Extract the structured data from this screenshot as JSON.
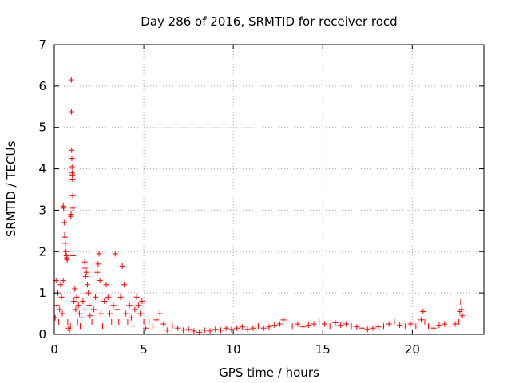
{
  "chart_data": {
    "type": "scatter",
    "title": "Day 286 of 2016, SRMTID for receiver rocd",
    "xlabel": "GPS time / hours",
    "ylabel": "SRMTID / TECUs",
    "xlim": [
      0,
      24
    ],
    "ylim": [
      0,
      7
    ],
    "xticks": [
      0,
      5,
      10,
      15,
      20
    ],
    "xtick_labels": [
      "0",
      "5",
      "10",
      "15",
      "20"
    ],
    "yticks": [
      0,
      1,
      2,
      3,
      4,
      5,
      6,
      7
    ],
    "ytick_labels": [
      "0",
      "1",
      "2",
      "3",
      "4",
      "5",
      "6",
      "7"
    ],
    "grid": true,
    "marker": "plus",
    "color": "#ff0000",
    "series": [
      {
        "name": "SRMTID",
        "points": [
          [
            0.05,
            0.4
          ],
          [
            0.1,
            1.3
          ],
          [
            0.15,
            0.7
          ],
          [
            0.2,
            1.0
          ],
          [
            0.25,
            0.3
          ],
          [
            0.3,
            0.6
          ],
          [
            0.35,
            1.2
          ],
          [
            0.4,
            0.9
          ],
          [
            0.45,
            0.5
          ],
          [
            0.5,
            1.3
          ],
          [
            0.5,
            3.1
          ],
          [
            0.52,
            3.05
          ],
          [
            0.55,
            2.7
          ],
          [
            0.58,
            2.4
          ],
          [
            0.6,
            2.35
          ],
          [
            0.62,
            2.2
          ],
          [
            0.65,
            2.0
          ],
          [
            0.68,
            1.9
          ],
          [
            0.7,
            1.85
          ],
          [
            0.72,
            1.8
          ],
          [
            0.75,
            0.3
          ],
          [
            0.8,
            0.15
          ],
          [
            0.85,
            0.1
          ],
          [
            0.9,
            0.2
          ],
          [
            0.92,
            2.85
          ],
          [
            0.94,
            2.9
          ],
          [
            0.95,
            6.15
          ],
          [
            0.96,
            5.38
          ],
          [
            0.97,
            4.45
          ],
          [
            0.98,
            4.25
          ],
          [
            0.99,
            4.05
          ],
          [
            1.0,
            3.9
          ],
          [
            1.01,
            3.85
          ],
          [
            1.02,
            3.75
          ],
          [
            1.03,
            3.35
          ],
          [
            1.04,
            3.05
          ],
          [
            1.05,
            1.9
          ],
          [
            1.1,
            0.8
          ],
          [
            1.15,
            1.1
          ],
          [
            1.2,
            0.6
          ],
          [
            1.25,
            0.9
          ],
          [
            1.3,
            0.3
          ],
          [
            1.35,
            0.7
          ],
          [
            1.4,
            0.5
          ],
          [
            1.45,
            0.2
          ],
          [
            1.5,
            0.4
          ],
          [
            1.6,
            0.8
          ],
          [
            1.7,
            1.75
          ],
          [
            1.72,
            1.6
          ],
          [
            1.75,
            1.4
          ],
          [
            1.8,
            1.5
          ],
          [
            1.85,
            1.2
          ],
          [
            1.9,
            1.0
          ],
          [
            1.95,
            0.7
          ],
          [
            2.0,
            0.45
          ],
          [
            2.1,
            0.3
          ],
          [
            2.2,
            0.6
          ],
          [
            2.3,
            0.9
          ],
          [
            2.4,
            1.5
          ],
          [
            2.45,
            1.7
          ],
          [
            2.5,
            1.95
          ],
          [
            2.55,
            1.3
          ],
          [
            2.6,
            0.5
          ],
          [
            2.7,
            0.2
          ],
          [
            2.8,
            0.8
          ],
          [
            2.9,
            1.2
          ],
          [
            3.0,
            0.9
          ],
          [
            3.1,
            0.5
          ],
          [
            3.2,
            0.3
          ],
          [
            3.3,
            0.7
          ],
          [
            3.4,
            1.95
          ],
          [
            3.5,
            0.6
          ],
          [
            3.6,
            0.3
          ],
          [
            3.7,
            0.9
          ],
          [
            3.8,
            1.65
          ],
          [
            3.9,
            1.2
          ],
          [
            4.0,
            0.5
          ],
          [
            4.1,
            0.3
          ],
          [
            4.2,
            0.7
          ],
          [
            4.3,
            0.4
          ],
          [
            4.4,
            0.2
          ],
          [
            4.5,
            0.6
          ],
          [
            4.6,
            0.9
          ],
          [
            4.7,
            0.7
          ],
          [
            4.8,
            0.5
          ],
          [
            4.9,
            0.8
          ],
          [
            5.0,
            0.3
          ],
          [
            5.1,
            0.15
          ],
          [
            5.3,
            0.3
          ],
          [
            5.5,
            0.2
          ],
          [
            5.7,
            0.35
          ],
          [
            5.9,
            0.5
          ],
          [
            6.1,
            0.25
          ],
          [
            6.3,
            0.1
          ],
          [
            6.6,
            0.2
          ],
          [
            6.9,
            0.15
          ],
          [
            7.2,
            0.1
          ],
          [
            7.5,
            0.12
          ],
          [
            7.8,
            0.08
          ],
          [
            8.1,
            0.05
          ],
          [
            8.4,
            0.1
          ],
          [
            8.7,
            0.08
          ],
          [
            9.0,
            0.12
          ],
          [
            9.3,
            0.1
          ],
          [
            9.6,
            0.15
          ],
          [
            9.9,
            0.12
          ],
          [
            10.2,
            0.15
          ],
          [
            10.5,
            0.18
          ],
          [
            10.8,
            0.12
          ],
          [
            11.1,
            0.15
          ],
          [
            11.4,
            0.2
          ],
          [
            11.7,
            0.15
          ],
          [
            12.0,
            0.18
          ],
          [
            12.3,
            0.22
          ],
          [
            12.6,
            0.25
          ],
          [
            12.8,
            0.35
          ],
          [
            13.0,
            0.3
          ],
          [
            13.3,
            0.2
          ],
          [
            13.6,
            0.25
          ],
          [
            13.9,
            0.18
          ],
          [
            14.2,
            0.22
          ],
          [
            14.5,
            0.25
          ],
          [
            14.8,
            0.3
          ],
          [
            15.1,
            0.25
          ],
          [
            15.4,
            0.2
          ],
          [
            15.7,
            0.28
          ],
          [
            16.0,
            0.22
          ],
          [
            16.3,
            0.25
          ],
          [
            16.6,
            0.2
          ],
          [
            16.9,
            0.18
          ],
          [
            17.2,
            0.15
          ],
          [
            17.5,
            0.12
          ],
          [
            17.8,
            0.15
          ],
          [
            18.1,
            0.18
          ],
          [
            18.4,
            0.2
          ],
          [
            18.7,
            0.25
          ],
          [
            19.0,
            0.3
          ],
          [
            19.3,
            0.22
          ],
          [
            19.6,
            0.2
          ],
          [
            19.9,
            0.25
          ],
          [
            20.2,
            0.2
          ],
          [
            20.5,
            0.35
          ],
          [
            20.6,
            0.55
          ],
          [
            20.7,
            0.3
          ],
          [
            20.9,
            0.2
          ],
          [
            21.2,
            0.15
          ],
          [
            21.5,
            0.22
          ],
          [
            21.8,
            0.25
          ],
          [
            22.1,
            0.2
          ],
          [
            22.4,
            0.25
          ],
          [
            22.6,
            0.3
          ],
          [
            22.65,
            0.55
          ],
          [
            22.7,
            0.78
          ],
          [
            22.75,
            0.6
          ],
          [
            22.8,
            0.45
          ]
        ]
      }
    ]
  }
}
